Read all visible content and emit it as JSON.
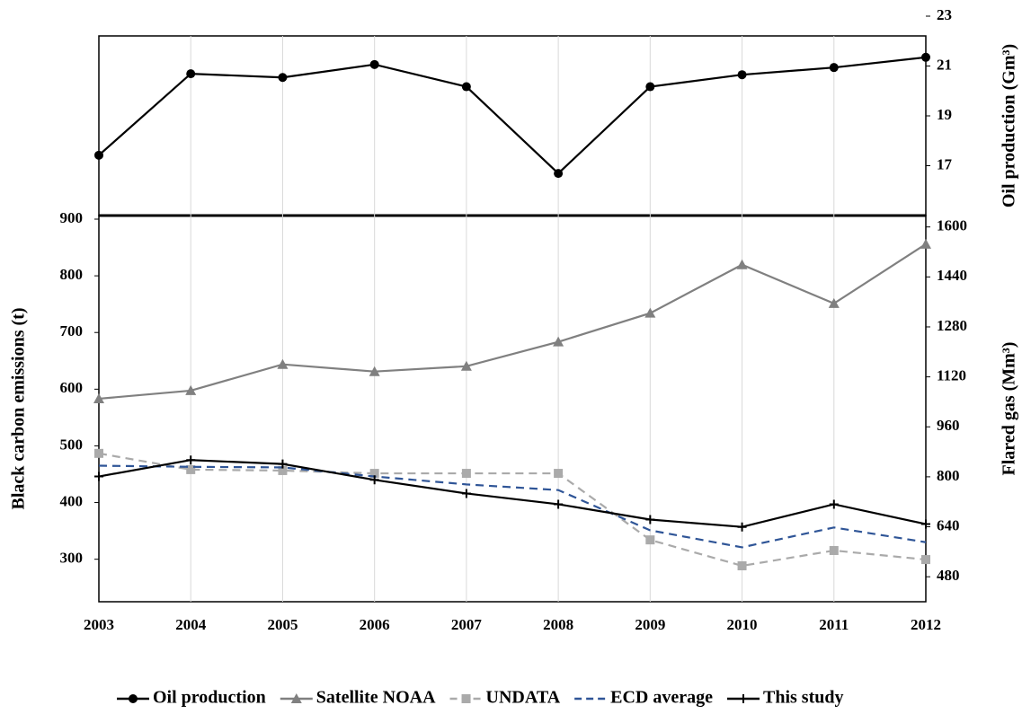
{
  "chart_data": [
    {
      "type": "line",
      "y2label": "Oil production (Gm³)",
      "y2lim": [
        15,
        23
      ],
      "y2ticks": [
        17,
        19,
        21,
        23
      ],
      "series": [
        {
          "name": "Oil production",
          "color": "#000000",
          "marker": "circle",
          "axis": "y2",
          "values": [
            17.42,
            20.69,
            20.54,
            21.06,
            20.17,
            16.69,
            20.17,
            20.65,
            20.94,
            21.35
          ]
        }
      ]
    },
    {
      "type": "line",
      "ylabel": "Black carbon emissions (t)",
      "y2label": "Flared gas (Mm³)",
      "categories": [
        "2003",
        "2004",
        "2005",
        "2006",
        "2007",
        "2008",
        "2009",
        "2010",
        "2011",
        "2012"
      ],
      "ylim": [
        225,
        900
      ],
      "yticks": [
        300,
        400,
        500,
        600,
        700,
        800,
        900
      ],
      "y2lim": [
        400,
        1625
      ],
      "y2ticks": [
        480,
        640,
        800,
        960,
        1120,
        1280,
        1440,
        1600
      ],
      "series": [
        {
          "name": "Satellite NOAA",
          "color": "#808080",
          "marker": "triangle",
          "axis": "y2",
          "values": [
            1050,
            1076,
            1160,
            1137,
            1154,
            1232,
            1324,
            1479,
            1355,
            1545
          ]
        },
        {
          "name": "UNDATA",
          "color": "#aaaaaa",
          "marker": "square",
          "dash": true,
          "axis": "y2",
          "values": [
            875,
            823,
            820,
            811,
            811,
            811,
            598,
            515,
            564,
            535
          ]
        },
        {
          "name": "ECD average",
          "color": "#2f5597",
          "marker": "none",
          "dash": true,
          "values": [
            465,
            463,
            462,
            446,
            432,
            422,
            351,
            321,
            356,
            330
          ]
        },
        {
          "name": "This study",
          "color": "#000000",
          "marker": "plus",
          "values": [
            446,
            475,
            468,
            440,
            416,
            397,
            370,
            357,
            397,
            362
          ]
        }
      ]
    }
  ]
}
